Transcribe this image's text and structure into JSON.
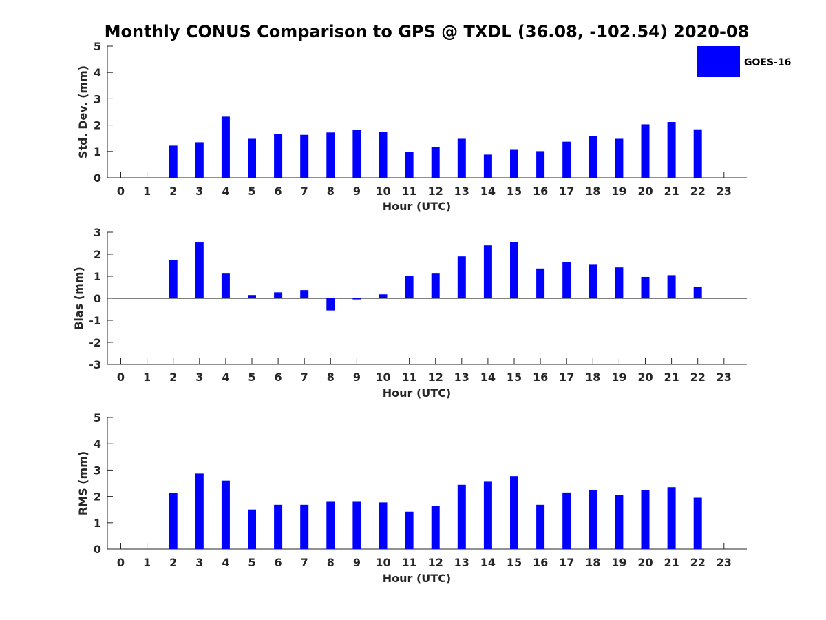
{
  "title": "Monthly CONUS Comparison to GPS @ TXDL (36.08, -102.54) 2020-08",
  "legend": {
    "label": "GOES-16",
    "color": "#0000ff"
  },
  "chart_data": [
    {
      "type": "bar",
      "title": "Monthly CONUS Comparison to GPS @ TXDL (36.08, -102.54) 2020-08",
      "xlabel": "Hour (UTC)",
      "ylabel": "Std. Dev. (mm)",
      "categories": [
        "0",
        "1",
        "2",
        "3",
        "4",
        "5",
        "6",
        "7",
        "8",
        "9",
        "10",
        "11",
        "12",
        "13",
        "14",
        "15",
        "16",
        "17",
        "18",
        "19",
        "20",
        "21",
        "22",
        "23"
      ],
      "ylim": [
        0,
        5
      ],
      "yticks": [
        "0",
        "1",
        "2",
        "3",
        "4",
        "5"
      ],
      "series": [
        {
          "name": "GOES-16",
          "color": "#0000ff",
          "values": [
            null,
            null,
            1.22,
            1.35,
            2.32,
            1.48,
            1.67,
            1.63,
            1.72,
            1.82,
            1.74,
            0.98,
            1.17,
            1.48,
            0.88,
            1.06,
            1.01,
            1.37,
            1.58,
            1.48,
            2.03,
            2.12,
            1.84,
            null
          ]
        }
      ],
      "grid": false,
      "legend_position": "top-right"
    },
    {
      "type": "bar",
      "xlabel": "Hour (UTC)",
      "ylabel": "Bias (mm)",
      "categories": [
        "0",
        "1",
        "2",
        "3",
        "4",
        "5",
        "6",
        "7",
        "8",
        "9",
        "10",
        "11",
        "12",
        "13",
        "14",
        "15",
        "16",
        "17",
        "18",
        "19",
        "20",
        "21",
        "22",
        "23"
      ],
      "ylim": [
        -3,
        3
      ],
      "yticks": [
        "-3",
        "-2",
        "-1",
        "0",
        "1",
        "2",
        "3"
      ],
      "series": [
        {
          "name": "GOES-16",
          "color": "#0000ff",
          "values": [
            null,
            null,
            1.72,
            2.53,
            1.12,
            0.15,
            0.27,
            0.37,
            -0.55,
            -0.05,
            0.18,
            1.02,
            1.12,
            1.9,
            2.4,
            2.55,
            1.35,
            1.65,
            1.55,
            1.4,
            0.97,
            1.05,
            0.53,
            null
          ]
        }
      ],
      "grid": false
    },
    {
      "type": "bar",
      "xlabel": "Hour (UTC)",
      "ylabel": "RMS (mm)",
      "categories": [
        "0",
        "1",
        "2",
        "3",
        "4",
        "5",
        "6",
        "7",
        "8",
        "9",
        "10",
        "11",
        "12",
        "13",
        "14",
        "15",
        "16",
        "17",
        "18",
        "19",
        "20",
        "21",
        "22",
        "23"
      ],
      "ylim": [
        0,
        5
      ],
      "yticks": [
        "0",
        "1",
        "2",
        "3",
        "4",
        "5"
      ],
      "series": [
        {
          "name": "GOES-16",
          "color": "#0000ff",
          "values": [
            null,
            null,
            2.12,
            2.87,
            2.6,
            1.5,
            1.68,
            1.68,
            1.82,
            1.82,
            1.77,
            1.42,
            1.63,
            2.44,
            2.58,
            2.77,
            1.68,
            2.15,
            2.23,
            2.05,
            2.23,
            2.35,
            1.95,
            null
          ]
        }
      ],
      "grid": false
    }
  ]
}
